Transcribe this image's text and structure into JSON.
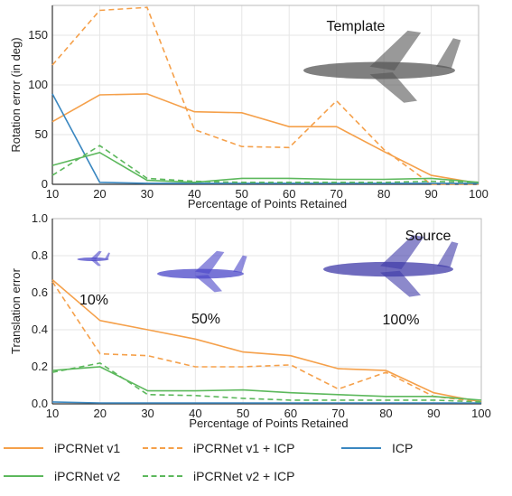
{
  "colors": {
    "v1": "#f5a04a",
    "v2": "#5cb85c",
    "icp": "#3a87c0",
    "grid": "#e6e6e6",
    "axis": "#333333"
  },
  "chart_data": [
    {
      "type": "line",
      "xlabel": "Percentage of Points Retained",
      "ylabel": "Rotation error (in deg)",
      "x": [
        10,
        20,
        30,
        40,
        50,
        60,
        70,
        80,
        90,
        100
      ],
      "xlim": [
        10,
        100
      ],
      "ylim": [
        0,
        180
      ],
      "yticks": [
        0,
        50,
        100,
        150
      ],
      "annotations": [
        "Template"
      ],
      "series": [
        {
          "name": "iPCRNet v1",
          "style": "solid",
          "color": "v1",
          "values": [
            63,
            90,
            91,
            73,
            72,
            58,
            58,
            33,
            9,
            1
          ]
        },
        {
          "name": "iPCRNet v1 + ICP",
          "style": "dashed",
          "color": "v1",
          "values": [
            120,
            175,
            178,
            55,
            38,
            37,
            84,
            35,
            0,
            0
          ]
        },
        {
          "name": "ICP",
          "style": "solid",
          "color": "icp",
          "values": [
            91,
            2,
            1,
            1,
            1,
            1,
            1,
            1,
            1,
            1
          ]
        },
        {
          "name": "iPCRNet v2",
          "style": "solid",
          "color": "v2",
          "values": [
            19,
            32,
            4,
            2,
            6,
            6,
            5,
            5,
            6,
            2
          ]
        },
        {
          "name": "iPCRNet v2 + ICP",
          "style": "dashed",
          "color": "v2",
          "values": [
            9,
            39,
            6,
            3,
            2,
            2,
            2,
            2,
            3,
            2
          ]
        }
      ]
    },
    {
      "type": "line",
      "xlabel": "Percentage of Points Retained",
      "ylabel": "Translation error",
      "x": [
        10,
        20,
        30,
        40,
        50,
        60,
        70,
        80,
        90,
        100
      ],
      "xlim": [
        10,
        100
      ],
      "ylim": [
        0,
        1.0
      ],
      "yticks": [
        0.0,
        0.2,
        0.4,
        0.6,
        0.8,
        1.0
      ],
      "annotations": [
        "Source",
        "10%",
        "50%",
        "100%"
      ],
      "series": [
        {
          "name": "iPCRNet v1",
          "style": "solid",
          "color": "v1",
          "values": [
            0.67,
            0.45,
            0.4,
            0.35,
            0.28,
            0.26,
            0.19,
            0.18,
            0.06,
            0.01
          ]
        },
        {
          "name": "iPCRNet v1 + ICP",
          "style": "dashed",
          "color": "v1",
          "values": [
            0.66,
            0.27,
            0.26,
            0.2,
            0.2,
            0.21,
            0.08,
            0.17,
            0.04,
            0.01
          ]
        },
        {
          "name": "ICP",
          "style": "solid",
          "color": "icp",
          "values": [
            0.01,
            0.005,
            0.005,
            0.005,
            0.005,
            0.005,
            0.005,
            0.005,
            0.005,
            0.005
          ]
        },
        {
          "name": "iPCRNet v2",
          "style": "solid",
          "color": "v2",
          "values": [
            0.18,
            0.2,
            0.07,
            0.07,
            0.075,
            0.06,
            0.05,
            0.04,
            0.04,
            0.02
          ]
        },
        {
          "name": "iPCRNet v2 + ICP",
          "style": "dashed",
          "color": "v2",
          "values": [
            0.17,
            0.22,
            0.05,
            0.045,
            0.03,
            0.02,
            0.02,
            0.02,
            0.02,
            0.01
          ]
        }
      ]
    }
  ],
  "legend": [
    {
      "label": "iPCRNet v1",
      "color": "v1",
      "style": "solid"
    },
    {
      "label": "iPCRNet v1 + ICP",
      "color": "v1",
      "style": "dashed"
    },
    {
      "label": "ICP",
      "color": "icp",
      "style": "solid"
    },
    {
      "label": "iPCRNet v2",
      "color": "v2",
      "style": "solid"
    },
    {
      "label": "iPCRNet v2 + ICP",
      "color": "v2",
      "style": "dashed"
    }
  ]
}
